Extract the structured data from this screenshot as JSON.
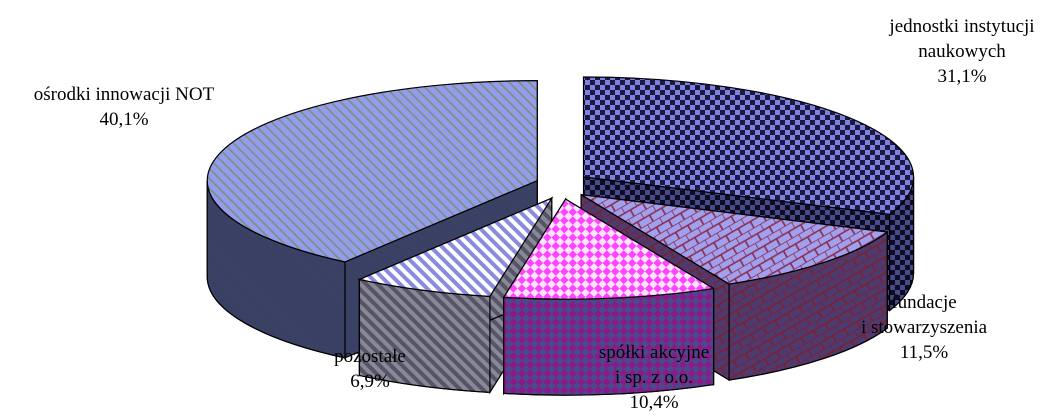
{
  "chart_data": {
    "type": "pie",
    "title": "",
    "style": "3d-exploded",
    "slices": [
      {
        "label_lines": [
          "jednostki instytucji",
          "naukowych"
        ],
        "value": 31.1,
        "value_label": "31,1%",
        "color": "#8080e0",
        "dark": "#2e2e5e",
        "pattern": "checker"
      },
      {
        "label_lines": [
          "fundacje",
          "i stowarzyszenia"
        ],
        "value": 11.5,
        "value_label": "11,5%",
        "color": "#9999ee",
        "dark": "#4d3a6e",
        "pattern": "brick"
      },
      {
        "label_lines": [
          "spółki akcyjne",
          "i sp. z o.o."
        ],
        "value": 10.4,
        "value_label": "10,4%",
        "color": "#ff44ff",
        "dark": "#8a1a8a",
        "pattern": "diamond"
      },
      {
        "label_lines": [
          "pozostałe"
        ],
        "value": 6.9,
        "value_label": "6,9%",
        "color": "#ffffff",
        "dark": "#7a7a8a",
        "pattern": "diag-rev"
      },
      {
        "label_lines": [
          "ośrodki innowacji NOT"
        ],
        "value": 40.1,
        "value_label": "40,1%",
        "color": "#9999ee",
        "dark": "#3e3e6a",
        "pattern": "diag"
      }
    ]
  }
}
